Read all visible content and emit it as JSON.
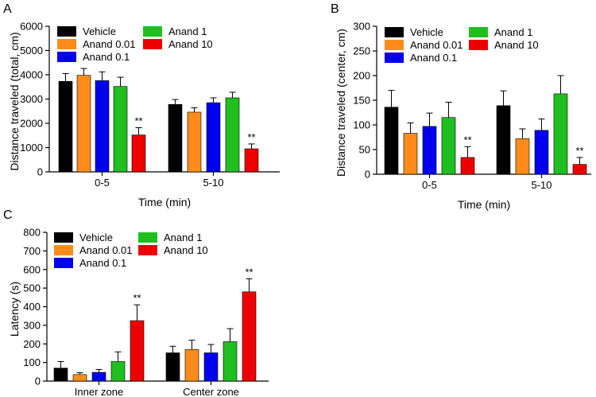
{
  "series_colors": {
    "Vehicle": "#000000",
    "Anand 0.01": "#ff8c1a",
    "Anand 0.1": "#0000ee",
    "Anand 1": "#1fbf1f",
    "Anand 10": "#ee0000"
  },
  "chart_data": [
    {
      "panel": "A",
      "type": "bar",
      "xlabel": "Time (min)",
      "ylabel": "Distance traveled (total, cm)",
      "ylim": [
        0,
        6000
      ],
      "yticks": [
        0,
        1000,
        2000,
        3000,
        4000,
        5000,
        6000
      ],
      "categories": [
        "0-5",
        "5-10"
      ],
      "legend": "top",
      "series": [
        {
          "name": "Vehicle",
          "values": [
            3730,
            2780
          ],
          "errors": [
            320,
            200
          ]
        },
        {
          "name": "Anand 0.01",
          "values": [
            3980,
            2460
          ],
          "errors": [
            280,
            180
          ]
        },
        {
          "name": "Anand 0.1",
          "values": [
            3760,
            2850
          ],
          "errors": [
            360,
            200
          ]
        },
        {
          "name": "Anand 1",
          "values": [
            3520,
            3050
          ],
          "errors": [
            380,
            230
          ]
        },
        {
          "name": "Anand 10",
          "values": [
            1520,
            950
          ],
          "errors": [
            300,
            200
          ]
        }
      ],
      "significance": [
        {
          "category": "0-5",
          "series": "Anand 10",
          "label": "**"
        },
        {
          "category": "5-10",
          "series": "Anand 10",
          "label": "**"
        }
      ]
    },
    {
      "panel": "B",
      "type": "bar",
      "xlabel": "Time (min)",
      "ylabel": "Distance traveled (center, cm)",
      "ylim": [
        0,
        300
      ],
      "yticks": [
        0,
        50,
        100,
        150,
        200,
        250,
        300
      ],
      "categories": [
        "0-5",
        "5-10"
      ],
      "legend": "top",
      "series": [
        {
          "name": "Vehicle",
          "values": [
            136,
            139
          ],
          "errors": [
            34,
            30
          ]
        },
        {
          "name": "Anand 0.01",
          "values": [
            83,
            72
          ],
          "errors": [
            21,
            20
          ]
        },
        {
          "name": "Anand 0.1",
          "values": [
            97,
            89
          ],
          "errors": [
            27,
            23
          ]
        },
        {
          "name": "Anand 1",
          "values": [
            115,
            163
          ],
          "errors": [
            31,
            37
          ]
        },
        {
          "name": "Anand 10",
          "values": [
            34,
            20
          ],
          "errors": [
            22,
            14
          ]
        }
      ],
      "significance": [
        {
          "category": "0-5",
          "series": "Anand 10",
          "label": "**"
        },
        {
          "category": "5-10",
          "series": "Anand 10",
          "label": "**"
        }
      ]
    },
    {
      "panel": "C",
      "type": "bar",
      "xlabel": "",
      "ylabel": "Latency (s)",
      "ylim": [
        0,
        800
      ],
      "yticks": [
        0,
        100,
        200,
        300,
        400,
        500,
        600,
        700,
        800
      ],
      "categories": [
        "Inner zone",
        "Center zone"
      ],
      "legend": "top",
      "series": [
        {
          "name": "Vehicle",
          "values": [
            70,
            152
          ],
          "errors": [
            35,
            35
          ]
        },
        {
          "name": "Anand 0.01",
          "values": [
            35,
            170
          ],
          "errors": [
            10,
            50
          ]
        },
        {
          "name": "Anand 0.1",
          "values": [
            47,
            152
          ],
          "errors": [
            15,
            45
          ]
        },
        {
          "name": "Anand 1",
          "values": [
            105,
            212
          ],
          "errors": [
            52,
            70
          ]
        },
        {
          "name": "Anand 10",
          "values": [
            325,
            480
          ],
          "errors": [
            85,
            70
          ]
        }
      ],
      "significance": [
        {
          "category": "Inner zone",
          "series": "Anand 10",
          "label": "**"
        },
        {
          "category": "Center zone",
          "series": "Anand 10",
          "label": "**"
        }
      ]
    }
  ]
}
